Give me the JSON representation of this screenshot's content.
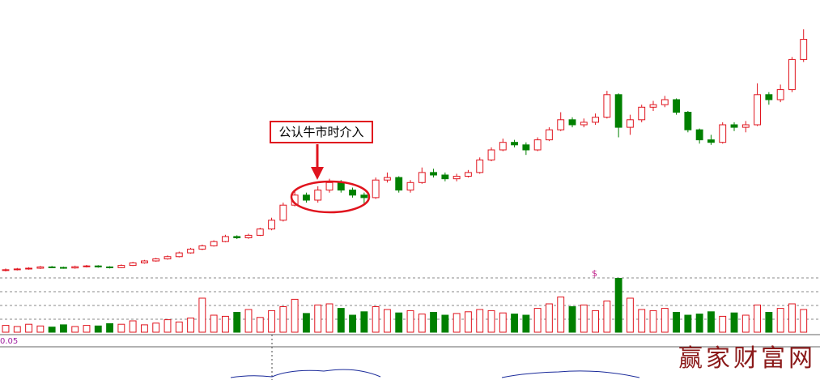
{
  "chart_data": {
    "type": "candlestick",
    "annotation": "公认牛市时介入",
    "indicator_label": "0.05",
    "marker": "$",
    "watermark": "赢家财富网",
    "up_color": "#e0141e",
    "down_color": "#008000",
    "ylim": [
      10,
      110
    ],
    "volume_ylim": [
      0,
      100
    ],
    "open": [
      12.0,
      12.3,
      12.6,
      12.9,
      13.4,
      13.2,
      13.0,
      13.5,
      13.8,
      13.4,
      13.1,
      14,
      15,
      15.8,
      16.6,
      17.5,
      19,
      20.5,
      21.8,
      23.5,
      25.5,
      25,
      26,
      28.5,
      32,
      38,
      42,
      40,
      44,
      47,
      44,
      42,
      41,
      48,
      49,
      44,
      47,
      51,
      50,
      48.5,
      49.5,
      51,
      56,
      60,
      63,
      62,
      60,
      64,
      68,
      72,
      70,
      71,
      73,
      82,
      69,
      72,
      77,
      78,
      80,
      75,
      68,
      64,
      63,
      70,
      69,
      70,
      82,
      80,
      84,
      96
    ],
    "high": [
      12.8,
      13.0,
      13.3,
      13.8,
      13.8,
      13.5,
      13.9,
      14.2,
      14.1,
      13.7,
      14.4,
      15.4,
      16.2,
      17,
      18,
      19.5,
      21,
      22.3,
      24,
      26.2,
      26,
      26.6,
      29,
      33,
      39,
      43.5,
      43,
      45.5,
      48.5,
      48,
      45,
      43,
      49,
      51,
      49.5,
      48,
      53,
      52.5,
      51,
      50.5,
      52,
      57,
      61,
      64.5,
      64,
      63,
      65,
      69,
      75,
      73,
      72.5,
      74.5,
      83.5,
      82.5,
      74,
      78,
      79.5,
      81.5,
      80.5,
      75.5,
      68.5,
      66,
      71,
      71,
      71.5,
      86.5,
      83,
      86,
      97,
      108
    ],
    "low": [
      11.6,
      12.0,
      12.3,
      12.6,
      12.9,
      12.7,
      12.7,
      13.2,
      13.1,
      12.8,
      12.9,
      13.8,
      14.7,
      15.5,
      16.3,
      17.2,
      18.7,
      20.1,
      21.5,
      23.2,
      24.5,
      24.6,
      25.7,
      28,
      31.5,
      37.5,
      39,
      39,
      43,
      43,
      41,
      38.5,
      40.5,
      47,
      43,
      43,
      46.5,
      49,
      47.5,
      47.5,
      49,
      50.5,
      55.5,
      59.5,
      61,
      58,
      59.5,
      63.5,
      67.5,
      69,
      69,
      70,
      72.5,
      65,
      66,
      71,
      75.5,
      77,
      74,
      67,
      62.5,
      62,
      62.5,
      67.5,
      67,
      69.5,
      78,
      79,
      83,
      95
    ],
    "close": [
      12.3,
      12.6,
      12.9,
      13.4,
      13.2,
      13.0,
      13.5,
      13.8,
      13.4,
      13.1,
      14,
      15,
      15.8,
      16.6,
      17.5,
      19,
      20.5,
      21.8,
      23.5,
      25.5,
      25,
      26,
      28.5,
      32,
      38,
      42,
      40,
      44,
      47,
      44,
      42,
      41,
      48,
      49,
      44,
      47,
      51,
      50,
      48.5,
      49.5,
      51,
      56,
      60,
      63,
      62,
      60,
      64,
      68,
      72,
      70,
      71,
      73,
      82,
      69,
      72,
      77,
      78,
      80,
      75,
      68,
      64,
      63,
      70,
      69,
      70,
      82,
      80,
      84,
      96,
      104
    ],
    "volume": [
      12,
      10,
      14,
      11,
      9,
      13,
      10,
      12,
      11,
      15,
      14,
      20,
      13,
      16,
      22,
      18,
      25,
      60,
      30,
      28,
      35,
      40,
      26,
      38,
      45,
      58,
      33,
      48,
      50,
      42,
      30,
      36,
      45,
      40,
      34,
      38,
      32,
      35,
      30,
      33,
      36,
      40,
      38,
      34,
      32,
      30,
      42,
      50,
      62,
      45,
      48,
      38,
      55,
      95,
      60,
      40,
      38,
      42,
      35,
      30,
      32,
      36,
      28,
      34,
      30,
      48,
      35,
      42,
      50,
      40
    ]
  }
}
